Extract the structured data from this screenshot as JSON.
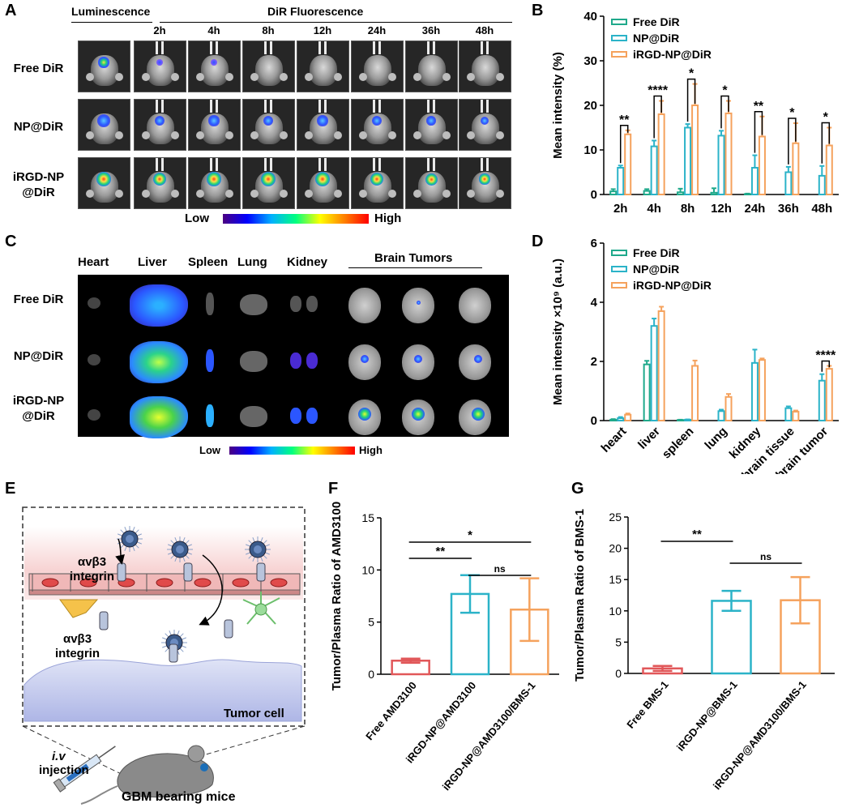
{
  "panels": {
    "A": "A",
    "B": "B",
    "C": "C",
    "D": "D",
    "E": "E",
    "F": "F",
    "G": "G"
  },
  "panelA": {
    "luminescence": "Luminescence",
    "fluorescence": "DiR Fluorescence",
    "times": [
      "2h",
      "4h",
      "8h",
      "12h",
      "24h",
      "36h",
      "48h"
    ],
    "rows": [
      "Free DiR",
      "NP@DiR",
      "iRGD-NP\n@DiR"
    ],
    "low": "Low",
    "high": "High"
  },
  "panelC": {
    "organs": [
      "Heart",
      "Liver",
      "Spleen",
      "Lung",
      "Kidney"
    ],
    "brain_tumors": "Brain Tumors",
    "rows": [
      "Free DiR",
      "NP@DiR",
      "iRGD-NP\n@DiR"
    ],
    "low": "Low",
    "high": "High"
  },
  "panelE": {
    "integrin_top": "αvβ3\nintegrin",
    "integrin_bottom": "αvβ3\nintegrin",
    "tumor_cell": "Tumor cell",
    "iv": "i.v",
    "injection": "injection",
    "mice": "GBM bearing mice"
  },
  "colors": {
    "free": "#1fa98b",
    "np": "#2bb3c8",
    "irgd": "#f5a25d",
    "free_bar_F": "#e15759"
  },
  "chart_data": [
    {
      "panel": "B",
      "type": "bar",
      "categories": [
        "2h",
        "4h",
        "8h",
        "12h",
        "24h",
        "36h",
        "48h"
      ],
      "series": [
        {
          "name": "Free DiR",
          "values": [
            0.7,
            0.8,
            0.5,
            0.4,
            0.1,
            0,
            0
          ],
          "errors": [
            0.5,
            0.4,
            0.8,
            1.0,
            0.1,
            0,
            0
          ]
        },
        {
          "name": "NP@DiR",
          "values": [
            6.0,
            10.8,
            15.0,
            13.2,
            6.0,
            5.0,
            4.2
          ],
          "errors": [
            0.5,
            1.3,
            0.8,
            1.1,
            2.8,
            1.2,
            2.2
          ]
        },
        {
          "name": "iRGD-NP@DiR",
          "values": [
            13.5,
            18.0,
            20.0,
            18.2,
            13.0,
            11.5,
            11.0
          ],
          "errors": [
            0.9,
            3.0,
            4.8,
            2.8,
            4.5,
            4.5,
            4.0
          ]
        }
      ],
      "significance": [
        "**",
        "****",
        "*",
        "*",
        "**",
        "*",
        "*"
      ],
      "ylabel": "Mean intensity (%)",
      "ylim": [
        0,
        40
      ],
      "yticks": [
        0,
        10,
        20,
        30,
        40
      ],
      "legend": "top-left"
    },
    {
      "panel": "D",
      "type": "bar",
      "categories": [
        "heart",
        "liver",
        "spleen",
        "lung",
        "kidney",
        "brain tissue",
        "brain tumor"
      ],
      "series": [
        {
          "name": "Free DiR",
          "values": [
            0.03,
            1.9,
            0.02,
            0,
            0,
            0,
            0
          ],
          "errors": [
            0.02,
            0.12,
            0.01,
            0,
            0,
            0,
            0
          ]
        },
        {
          "name": "NP@DiR",
          "values": [
            0.08,
            3.2,
            0.03,
            0.32,
            1.95,
            0.42,
            1.35
          ],
          "errors": [
            0.04,
            0.25,
            0.01,
            0.05,
            0.45,
            0.06,
            0.22
          ]
        },
        {
          "name": "iRGD-NP@DiR",
          "values": [
            0.2,
            3.7,
            1.85,
            0.8,
            2.05,
            0.3,
            1.75
          ],
          "errors": [
            0.04,
            0.15,
            0.18,
            0.1,
            0.05,
            0.04,
            0.1
          ]
        }
      ],
      "significance": [
        "",
        "",
        "",
        "",
        "",
        "",
        "****"
      ],
      "ylabel": "Mean intensity ×10⁹ (a.u.)",
      "ylim": [
        0,
        6
      ],
      "yticks": [
        0,
        2,
        4,
        6
      ],
      "legend": "top-left"
    },
    {
      "panel": "F",
      "type": "bar",
      "categories": [
        "Free AMD3100",
        "iRGD-NP@AMD3100",
        "iRGD-NP@AMD3100/BMS-1"
      ],
      "values": [
        1.3,
        7.7,
        6.2
      ],
      "errors": [
        0.2,
        1.8,
        3.0
      ],
      "ylabel": "Tumor/Plasma Ratio of AMD3100",
      "ylim": [
        0,
        15
      ],
      "yticks": [
        0,
        5,
        10,
        15
      ],
      "comparisons": [
        {
          "from": 0,
          "to": 2,
          "label": "*"
        },
        {
          "from": 0,
          "to": 1,
          "label": "**"
        },
        {
          "from": 1,
          "to": 2,
          "label": "ns"
        }
      ]
    },
    {
      "panel": "G",
      "type": "bar",
      "categories": [
        "Free BMS-1",
        "iRGD-NP@BMS-1",
        "iRGD-NP@AMD3100/BMS-1"
      ],
      "values": [
        0.8,
        11.6,
        11.7
      ],
      "errors": [
        0.4,
        1.6,
        3.7
      ],
      "ylabel": "Tumor/Plasma Ratio of BMS-1",
      "ylim": [
        0,
        25
      ],
      "yticks": [
        0,
        5,
        10,
        15,
        20,
        25
      ],
      "comparisons": [
        {
          "from": 0,
          "to": 1,
          "label": "**"
        },
        {
          "from": 1,
          "to": 2,
          "label": "ns"
        }
      ]
    }
  ]
}
